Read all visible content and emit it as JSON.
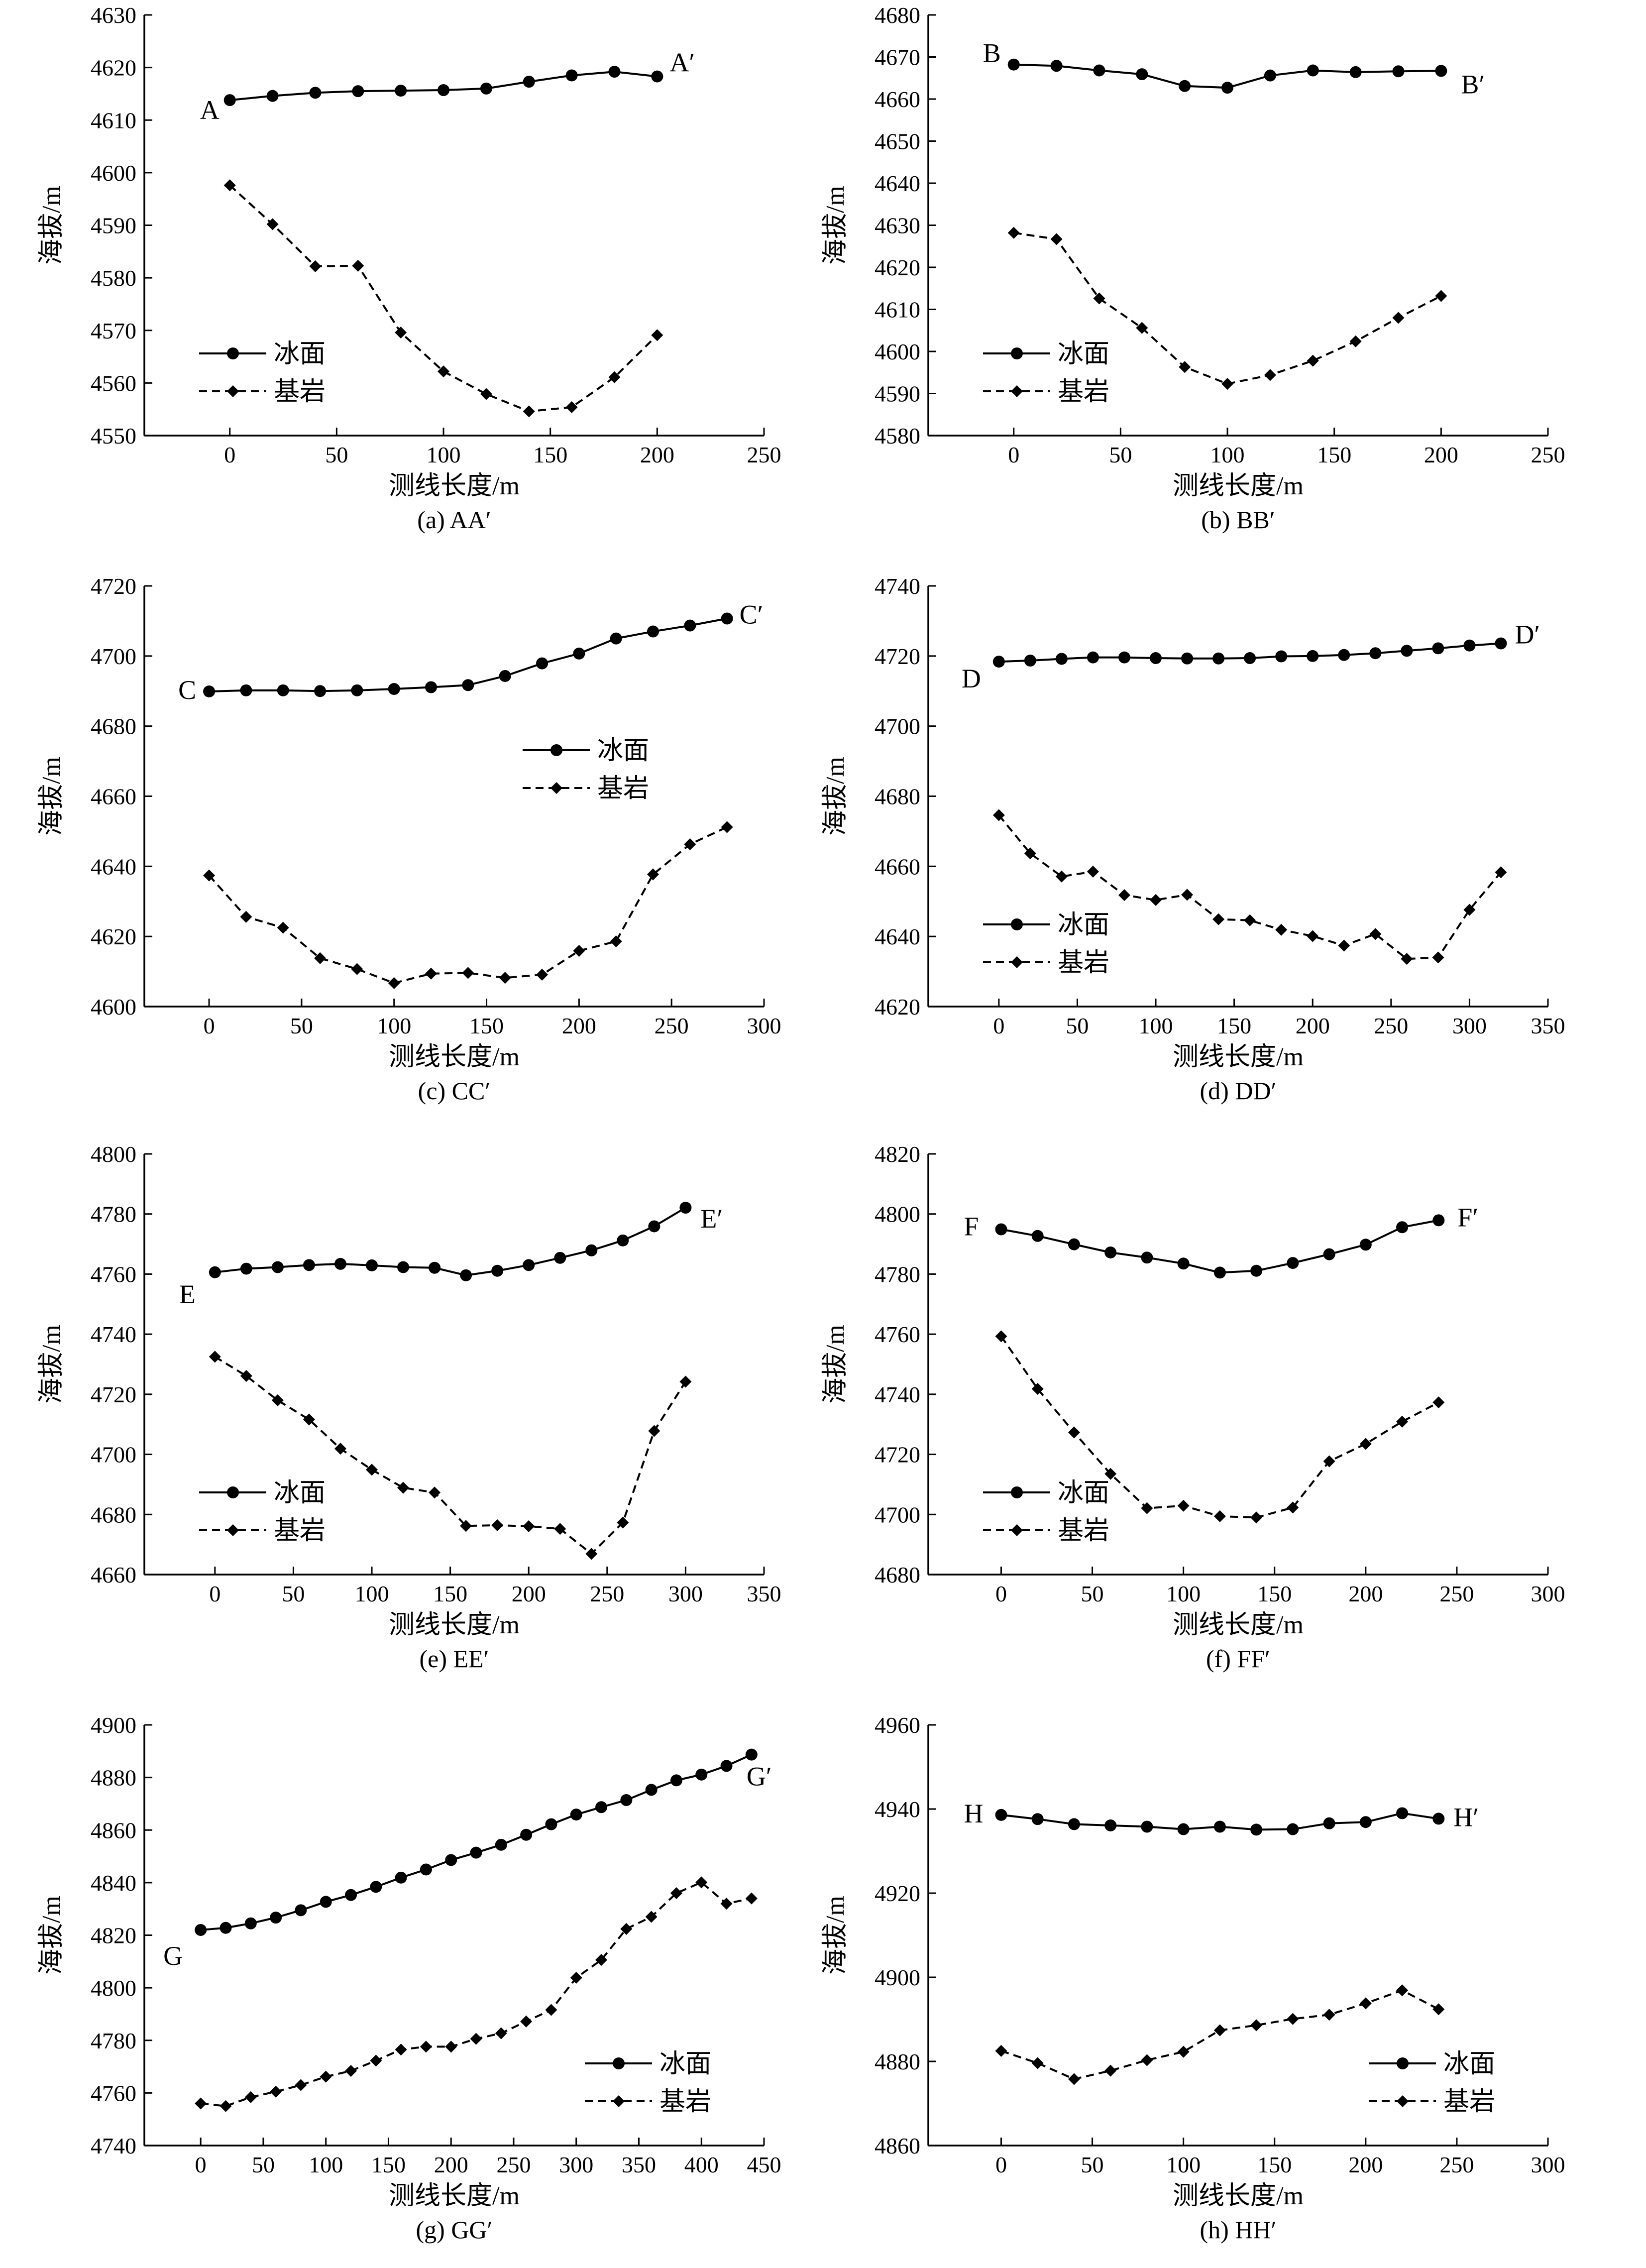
{
  "figure": {
    "legend_labels": {
      "surface": "冰面",
      "bedrock": "基岩"
    }
  },
  "chart_data": [
    {
      "id": "a",
      "type": "line",
      "caption": "(a) AA′",
      "xlabel": "测线长度/m",
      "ylabel": "海拔/m",
      "xlim": [
        -40,
        250
      ],
      "ylim": [
        4550,
        4630
      ],
      "xticks": [
        0,
        50,
        100,
        150,
        200,
        250
      ],
      "yticks": [
        4550,
        4560,
        4570,
        4580,
        4590,
        4600,
        4610,
        4620,
        4630
      ],
      "start_label": "A",
      "end_label": "A′",
      "legend_position": "bottom-left",
      "x": [
        0,
        20,
        40,
        60,
        80,
        100,
        120,
        140,
        160,
        180,
        200
      ],
      "series": [
        {
          "name": "冰面",
          "values": [
            4613.8,
            4614.6,
            4615.2,
            4615.5,
            4615.6,
            4615.7,
            4616.0,
            4617.3,
            4618.5,
            4619.2,
            4618.3
          ]
        },
        {
          "name": "基岩",
          "values": [
            4597.6,
            4590.2,
            4582.2,
            4582.3,
            4569.6,
            4562.2,
            4557.9,
            4554.6,
            4555.4,
            4561.1,
            4569.1
          ]
        }
      ]
    },
    {
      "id": "b",
      "type": "line",
      "caption": "(b) BB′",
      "xlabel": "测线长度/m",
      "ylabel": "海拔/m",
      "xlim": [
        -40,
        250
      ],
      "ylim": [
        4580,
        4680
      ],
      "xticks": [
        0,
        50,
        100,
        150,
        200,
        250
      ],
      "yticks": [
        4580,
        4590,
        4600,
        4610,
        4620,
        4630,
        4640,
        4650,
        4660,
        4670,
        4680
      ],
      "start_label": "B",
      "end_label": "B′",
      "legend_position": "bottom-left",
      "x": [
        0,
        20,
        40,
        60,
        80,
        100,
        120,
        140,
        160,
        180,
        200
      ],
      "series": [
        {
          "name": "冰面",
          "values": [
            4668.2,
            4667.9,
            4666.8,
            4665.9,
            4663.1,
            4662.7,
            4665.6,
            4666.8,
            4666.4,
            4666.6,
            4666.7
          ]
        },
        {
          "name": "基岩",
          "values": [
            4628.2,
            4626.7,
            4612.6,
            4605.6,
            4596.3,
            4592.3,
            4594.4,
            4597.8,
            4602.4,
            4608.0,
            4613.2
          ]
        }
      ]
    },
    {
      "id": "c",
      "type": "line",
      "caption": "(c) CC′",
      "xlabel": "测线长度/m",
      "ylabel": "海拔/m",
      "xlim": [
        -35,
        300
      ],
      "ylim": [
        4600,
        4720
      ],
      "xticks": [
        0,
        50,
        100,
        150,
        200,
        250,
        300
      ],
      "yticks": [
        4600,
        4620,
        4640,
        4660,
        4680,
        4700,
        4720
      ],
      "start_label": "C",
      "end_label": "C′",
      "legend_position": "middle-right",
      "x": [
        0,
        20,
        40,
        60,
        80,
        100,
        120,
        140,
        160,
        180,
        200,
        220,
        240,
        260,
        280
      ],
      "series": [
        {
          "name": "冰面",
          "values": [
            4689.9,
            4690.2,
            4690.2,
            4690.0,
            4690.2,
            4690.6,
            4691.1,
            4691.7,
            4694.3,
            4697.9,
            4700.7,
            4705.0,
            4707.0,
            4708.7,
            4710.7
          ]
        },
        {
          "name": "基岩",
          "values": [
            4637.4,
            4625.6,
            4622.5,
            4613.8,
            4610.7,
            4606.7,
            4609.4,
            4609.6,
            4608.2,
            4609.1,
            4615.9,
            4618.6,
            4637.7,
            4646.3,
            4651.2
          ]
        }
      ]
    },
    {
      "id": "d",
      "type": "line",
      "caption": "(d) DD′",
      "xlabel": "测线长度/m",
      "ylabel": "海拔/m",
      "xlim": [
        -45,
        350
      ],
      "ylim": [
        4620,
        4740
      ],
      "xticks": [
        0,
        50,
        100,
        150,
        200,
        250,
        300,
        350
      ],
      "yticks": [
        4620,
        4640,
        4660,
        4680,
        4700,
        4720,
        4740
      ],
      "start_label": "D",
      "end_label": "D′",
      "legend_position": "bottom-left",
      "x": [
        0,
        20,
        40,
        60,
        80,
        100,
        120,
        140,
        160,
        180,
        200,
        220,
        240,
        260,
        280,
        300,
        320
      ],
      "series": [
        {
          "name": "冰面",
          "values": [
            4718.4,
            4718.7,
            4719.2,
            4719.6,
            4719.6,
            4719.4,
            4719.3,
            4719.3,
            4719.4,
            4719.9,
            4720.0,
            4720.3,
            4720.8,
            4721.5,
            4722.2,
            4723.0,
            4723.6
          ]
        },
        {
          "name": "基岩",
          "values": [
            4674.6,
            4663.7,
            4657.1,
            4658.5,
            4651.8,
            4650.4,
            4651.9,
            4644.9,
            4644.6,
            4641.9,
            4640.1,
            4637.4,
            4640.7,
            4633.6,
            4634.0,
            4647.6,
            4658.3
          ]
        }
      ]
    },
    {
      "id": "e",
      "type": "line",
      "caption": "(e) EE′",
      "xlabel": "测线长度/m",
      "ylabel": "海拔/m",
      "xlim": [
        -45,
        350
      ],
      "ylim": [
        4660,
        4800
      ],
      "xticks": [
        0,
        50,
        100,
        150,
        200,
        250,
        300,
        350
      ],
      "yticks": [
        4660,
        4680,
        4700,
        4720,
        4740,
        4760,
        4780,
        4800
      ],
      "start_label": "E",
      "end_label": "E′",
      "legend_position": "bottom-left",
      "x": [
        0,
        20,
        40,
        60,
        80,
        100,
        120,
        140,
        160,
        180,
        200,
        220,
        240,
        260,
        280,
        300
      ],
      "series": [
        {
          "name": "冰面",
          "values": [
            4760.6,
            4761.8,
            4762.3,
            4763.0,
            4763.4,
            4762.9,
            4762.3,
            4762.1,
            4759.6,
            4761.1,
            4763.0,
            4765.4,
            4767.9,
            4771.2,
            4775.9,
            4782.1
          ]
        },
        {
          "name": "基岩",
          "values": [
            4732.5,
            4726.1,
            4718.0,
            4711.6,
            4701.9,
            4694.9,
            4688.9,
            4687.3,
            4676.2,
            4676.4,
            4676.1,
            4675.2,
            4666.9,
            4677.3,
            4707.8,
            4724.2
          ]
        }
      ]
    },
    {
      "id": "f",
      "type": "line",
      "caption": "(f) FF′",
      "xlabel": "测线长度/m",
      "ylabel": "海拔/m",
      "xlim": [
        -40,
        300
      ],
      "ylim": [
        4680,
        4820
      ],
      "xticks": [
        0,
        50,
        100,
        150,
        200,
        250,
        300
      ],
      "yticks": [
        4680,
        4700,
        4720,
        4740,
        4760,
        4780,
        4800,
        4820
      ],
      "start_label": "F",
      "end_label": "F′",
      "legend_position": "bottom-left",
      "x": [
        0,
        20,
        40,
        60,
        80,
        100,
        120,
        140,
        160,
        180,
        200,
        220,
        240
      ],
      "series": [
        {
          "name": "冰面",
          "values": [
            4794.9,
            4792.7,
            4789.9,
            4787.2,
            4785.5,
            4783.5,
            4780.5,
            4781.1,
            4783.7,
            4786.6,
            4789.8,
            4795.6,
            4797.9
          ]
        },
        {
          "name": "基岩",
          "values": [
            4759.3,
            4741.8,
            4727.3,
            4713.5,
            4702.1,
            4702.9,
            4699.4,
            4699.0,
            4702.3,
            4717.7,
            4723.5,
            4730.9,
            4737.3
          ]
        }
      ]
    },
    {
      "id": "g",
      "type": "line",
      "caption": "(g) GG′",
      "xlabel": "测线长度/m",
      "ylabel": "海拔/m",
      "xlim": [
        -45,
        450
      ],
      "ylim": [
        4740,
        4900
      ],
      "xticks": [
        0,
        50,
        100,
        150,
        200,
        250,
        300,
        350,
        400,
        450
      ],
      "yticks": [
        4740,
        4760,
        4780,
        4800,
        4820,
        4840,
        4860,
        4880,
        4900
      ],
      "start_label": "G",
      "end_label": "G′",
      "legend_position": "bottom-right",
      "x": [
        0,
        20,
        40,
        60,
        80,
        100,
        120,
        140,
        160,
        180,
        200,
        220,
        240,
        260,
        280,
        300,
        320,
        340,
        360,
        380,
        400,
        420,
        440
      ],
      "series": [
        {
          "name": "冰面",
          "values": [
            4822.0,
            4822.8,
            4824.5,
            4826.7,
            4829.5,
            4832.7,
            4835.3,
            4838.4,
            4841.9,
            4845.0,
            4848.6,
            4851.4,
            4854.4,
            4858.2,
            4862.2,
            4865.9,
            4868.7,
            4871.4,
            4875.3,
            4878.9,
            4881.1,
            4884.4,
            4888.7
          ]
        },
        {
          "name": "基岩",
          "values": [
            4756.0,
            4755.0,
            4758.4,
            4760.5,
            4763.0,
            4766.2,
            4768.4,
            4772.3,
            4776.5,
            4777.6,
            4777.6,
            4780.6,
            4782.7,
            4787.2,
            4791.6,
            4803.8,
            4810.6,
            4822.4,
            4827.0,
            4836.0,
            4840.1,
            4832.0,
            4834.0
          ]
        }
      ]
    },
    {
      "id": "h",
      "type": "line",
      "caption": "(h) HH′",
      "xlabel": "测线长度/m",
      "ylabel": "海拔/m",
      "xlim": [
        -40,
        300
      ],
      "ylim": [
        4860,
        4960
      ],
      "xticks": [
        0,
        50,
        100,
        150,
        200,
        250,
        300
      ],
      "yticks": [
        4860,
        4880,
        4900,
        4920,
        4940,
        4960
      ],
      "start_label": "H",
      "end_label": "H′",
      "legend_position": "bottom-right",
      "x": [
        0,
        20,
        40,
        60,
        80,
        100,
        120,
        140,
        160,
        180,
        200,
        220,
        240
      ],
      "series": [
        {
          "name": "冰面",
          "values": [
            4938.6,
            4937.6,
            4936.4,
            4936.1,
            4935.8,
            4935.2,
            4935.8,
            4935.1,
            4935.2,
            4936.6,
            4936.9,
            4939.0,
            4937.7
          ]
        },
        {
          "name": "基岩",
          "values": [
            4882.5,
            4879.6,
            4875.8,
            4877.8,
            4880.3,
            4882.3,
            4887.4,
            4888.6,
            4890.1,
            4891.1,
            4893.8,
            4896.9,
            4892.4
          ]
        }
      ]
    }
  ]
}
